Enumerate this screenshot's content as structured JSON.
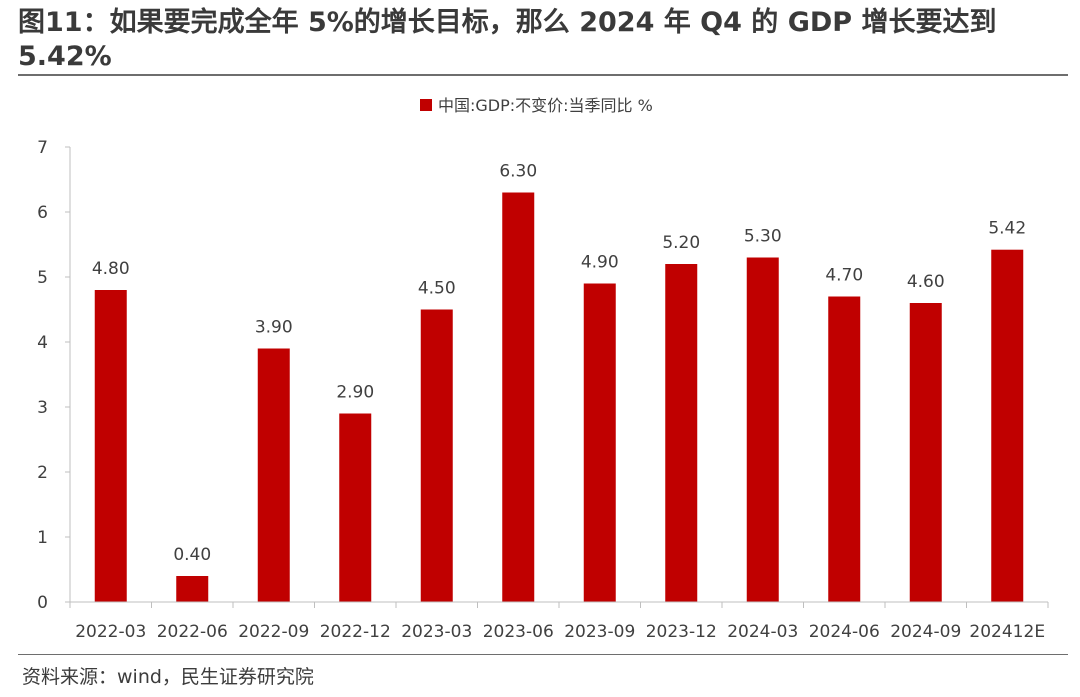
{
  "title": "图11：如果要完成全年 5%的增长目标，那么 2024 年 Q4 的 GDP 增长要达到 5.42%",
  "source": "资料来源：wind，民生证券研究院",
  "colors": {
    "bar": "#c00000",
    "axis": "#bfbfbf",
    "text": "#404040"
  },
  "chart_data": {
    "type": "bar",
    "categories": [
      "2022-03",
      "2022-06",
      "2022-09",
      "2022-12",
      "2023-03",
      "2023-06",
      "2023-09",
      "2023-12",
      "2024-03",
      "2024-06",
      "2024-09",
      "202412E"
    ],
    "series": [
      {
        "name": "中国:GDP:不变价:当季同比 %",
        "values": [
          4.8,
          0.4,
          3.9,
          2.9,
          4.5,
          6.3,
          4.9,
          5.2,
          5.3,
          4.7,
          4.6,
          5.42
        ],
        "labels": [
          "4.80",
          "0.40",
          "3.90",
          "2.90",
          "4.50",
          "6.30",
          "4.90",
          "5.20",
          "5.30",
          "4.70",
          "4.60",
          "5.42"
        ]
      }
    ],
    "yticks": [
      "0",
      "1",
      "2",
      "3",
      "4",
      "5",
      "6",
      "7"
    ],
    "ylim": [
      0,
      7
    ],
    "legend": "top-center",
    "grid": false
  }
}
